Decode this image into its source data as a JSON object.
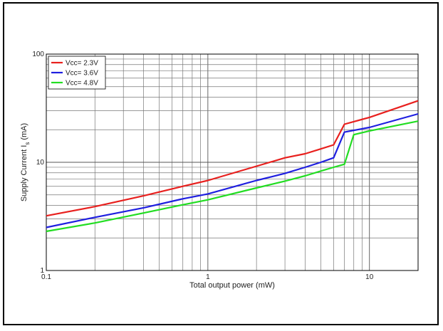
{
  "chart_data": {
    "type": "line",
    "title": "",
    "xlabel": "Total output power (mW)",
    "ylabel": "Supply Current I",
    "ylabel_subscript": "s",
    "ylabel_unit": "(mA)",
    "x_scale": "log",
    "y_scale": "log",
    "xlim": [
      0.1,
      20
    ],
    "ylim": [
      1,
      100
    ],
    "x_ticks": [
      {
        "value": 0.1,
        "label": "0.1"
      },
      {
        "value": 1,
        "label": "1"
      },
      {
        "value": 10,
        "label": "10"
      }
    ],
    "y_ticks": [
      {
        "value": 1,
        "label": "1"
      },
      {
        "value": 10,
        "label": "10"
      },
      {
        "value": 100,
        "label": "100"
      }
    ],
    "grid": true,
    "legend_position": "top-left",
    "series": [
      {
        "name": "Vcc= 2.3V",
        "color": "#e8201e",
        "x": [
          0.1,
          0.2,
          0.4,
          0.7,
          1,
          2,
          3,
          4,
          5,
          6,
          7,
          10,
          20
        ],
        "y": [
          3.2,
          3.9,
          4.9,
          6.0,
          6.8,
          9.2,
          11.0,
          12.0,
          13.3,
          14.5,
          22.5,
          26.0,
          37.0
        ]
      },
      {
        "name": "Vcc= 3.6V",
        "color": "#1f1fe0",
        "x": [
          0.1,
          0.2,
          0.4,
          0.7,
          1,
          2,
          3,
          4,
          5,
          6,
          7,
          10,
          20
        ],
        "y": [
          2.5,
          3.1,
          3.8,
          4.6,
          5.1,
          6.8,
          7.9,
          9.0,
          10.0,
          11.0,
          19.0,
          21.0,
          28.0
        ]
      },
      {
        "name": "Vcc= 4.8V",
        "color": "#22dd22",
        "x": [
          0.1,
          0.2,
          0.4,
          0.7,
          1,
          2,
          3,
          4,
          5,
          6,
          7,
          8,
          10,
          20
        ],
        "y": [
          2.3,
          2.75,
          3.4,
          4.05,
          4.5,
          5.8,
          6.7,
          7.5,
          8.3,
          9.0,
          9.6,
          18.0,
          19.5,
          24.0
        ]
      }
    ]
  }
}
